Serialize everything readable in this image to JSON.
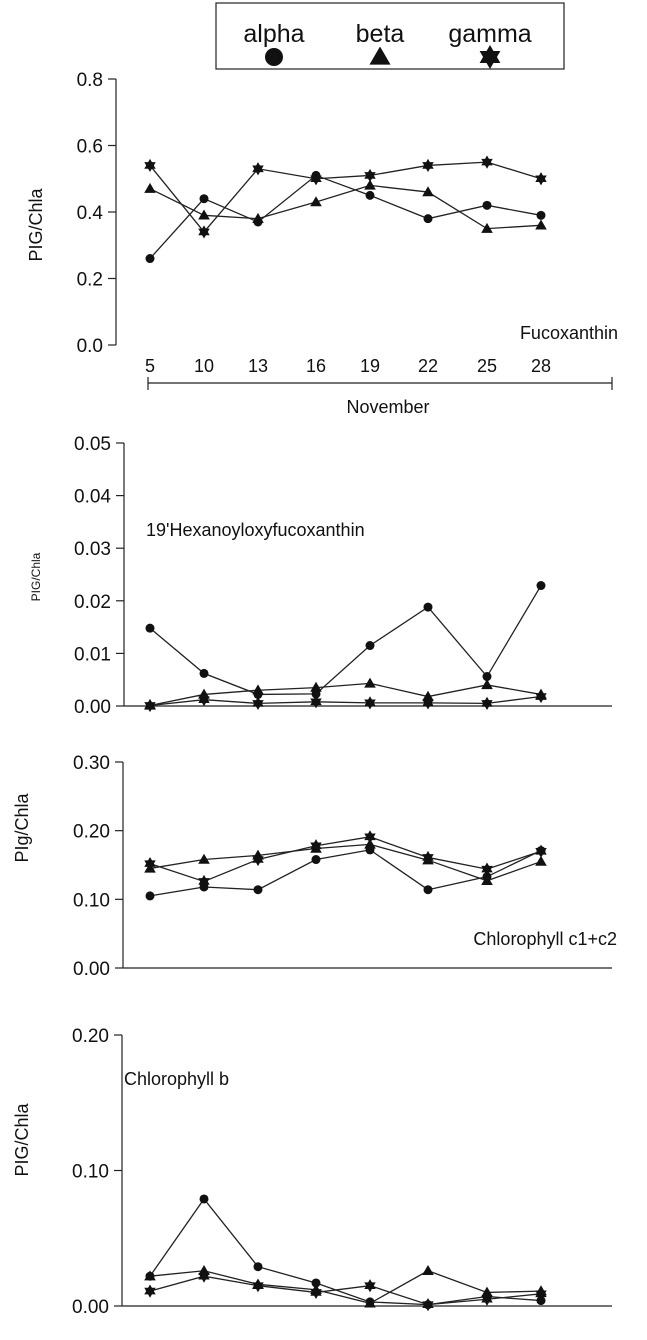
{
  "legend": {
    "items": [
      {
        "label": "alpha",
        "marker": "circle"
      },
      {
        "label": "beta",
        "marker": "triangle"
      },
      {
        "label": "gamma",
        "marker": "star"
      }
    ]
  },
  "shared_x": {
    "ticks": [
      5,
      10,
      13,
      16,
      19,
      22,
      25,
      28
    ],
    "label": "November"
  },
  "chart_data": [
    {
      "type": "line",
      "title": "Fucoxanthin",
      "ylabel": "PIG/Chla",
      "ylim": [
        0,
        0.8
      ],
      "yticks": [
        "0.0",
        "0.2",
        "0.4",
        "0.6",
        "0.8"
      ],
      "x": [
        5,
        10,
        13,
        16,
        19,
        22,
        25,
        28
      ],
      "series": [
        {
          "name": "alpha",
          "values": [
            0.26,
            0.44,
            0.37,
            0.51,
            0.45,
            0.38,
            0.42,
            0.39
          ]
        },
        {
          "name": "beta",
          "values": [
            0.47,
            0.39,
            0.38,
            0.43,
            0.48,
            0.46,
            0.35,
            0.36
          ]
        },
        {
          "name": "gamma",
          "values": [
            0.54,
            0.34,
            0.53,
            0.5,
            0.51,
            0.54,
            0.55,
            0.5
          ]
        }
      ]
    },
    {
      "type": "line",
      "title": "19'Hexanoyloxyfucoxanthin",
      "ylabel": "PIG/Chla",
      "ylim": [
        0,
        0.05
      ],
      "yticks": [
        "0.00",
        "0.01",
        "0.02",
        "0.03",
        "0.04",
        "0.05"
      ],
      "x": [
        5,
        10,
        13,
        16,
        19,
        22,
        25,
        28
      ],
      "series": [
        {
          "name": "alpha",
          "values": [
            0.0148,
            0.0062,
            0.0022,
            0.0023,
            0.0115,
            0.0188,
            0.0056,
            0.0229
          ]
        },
        {
          "name": "beta",
          "values": [
            0.0001,
            0.0022,
            0.003,
            0.0035,
            0.0043,
            0.0018,
            0.004,
            0.0022
          ]
        },
        {
          "name": "gamma",
          "values": [
            0.0001,
            0.0012,
            0.0005,
            0.0008,
            0.0006,
            0.0006,
            0.0005,
            0.0018
          ]
        }
      ]
    },
    {
      "type": "line",
      "title": "Chlorophyll c1+c2",
      "ylabel": "PIg/Chla",
      "ylim": [
        0,
        0.3
      ],
      "yticks": [
        "0.00",
        "0.10",
        "0.20",
        "0.30"
      ],
      "x": [
        5,
        10,
        13,
        16,
        19,
        22,
        25,
        28
      ],
      "series": [
        {
          "name": "alpha",
          "values": [
            0.105,
            0.118,
            0.114,
            0.158,
            0.172,
            0.114,
            0.133,
            0.171
          ]
        },
        {
          "name": "beta",
          "values": [
            0.145,
            0.158,
            0.164,
            0.174,
            0.18,
            0.157,
            0.127,
            0.155
          ]
        },
        {
          "name": "gamma",
          "values": [
            0.152,
            0.126,
            0.158,
            0.178,
            0.191,
            0.161,
            0.144,
            0.17
          ]
        }
      ]
    },
    {
      "type": "line",
      "title": "Chlorophyll b",
      "ylabel": "PIG/Chla",
      "ylim": [
        0,
        0.2
      ],
      "yticks": [
        "0.00",
        "0.10",
        "0.20"
      ],
      "x": [
        5,
        10,
        13,
        16,
        19,
        22,
        25,
        28
      ],
      "series": [
        {
          "name": "alpha",
          "values": [
            0.022,
            0.079,
            0.029,
            0.017,
            0.003,
            0.001,
            0.007,
            0.004
          ]
        },
        {
          "name": "beta",
          "values": [
            0.022,
            0.026,
            0.016,
            0.012,
            0.002,
            0.026,
            0.01,
            0.011
          ]
        },
        {
          "name": "gamma",
          "values": [
            0.011,
            0.022,
            0.015,
            0.01,
            0.015,
            0.001,
            0.005,
            0.009
          ]
        }
      ]
    }
  ]
}
